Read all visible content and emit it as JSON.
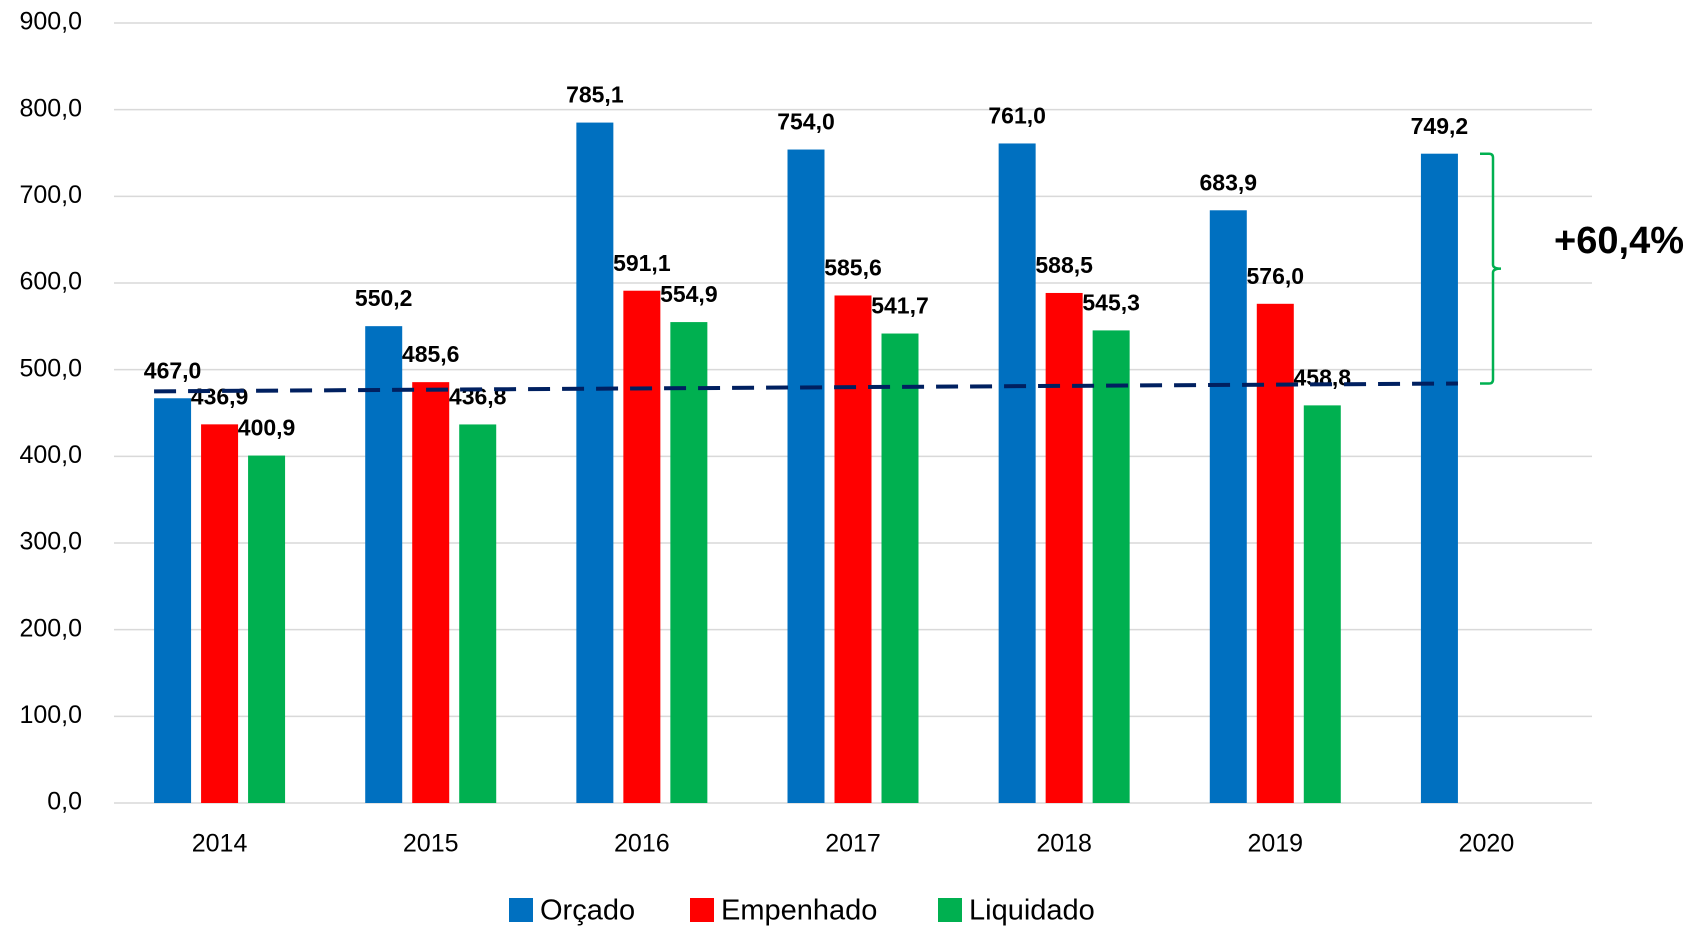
{
  "chart_data": {
    "type": "bar",
    "categories": [
      "2014",
      "2015",
      "2016",
      "2017",
      "2018",
      "2019",
      "2020"
    ],
    "series": [
      {
        "name": "Orçado",
        "color": "#0070c0",
        "values": [
          467.0,
          550.2,
          785.1,
          754.0,
          761.0,
          683.9,
          749.2
        ],
        "value_labels": [
          "467,0",
          "550,2",
          "785,1",
          "754,0",
          "761,0",
          "683,9",
          "749,2"
        ]
      },
      {
        "name": "Empenhado",
        "color": "#ff0000",
        "values": [
          436.9,
          485.6,
          591.1,
          585.6,
          588.5,
          576.0,
          null
        ],
        "value_labels": [
          "436,9",
          "485,6",
          "591,1",
          "585,6",
          "588,5",
          "576,0",
          null
        ]
      },
      {
        "name": "Liquidado",
        "color": "#00b050",
        "values": [
          400.9,
          436.8,
          554.9,
          541.7,
          545.3,
          458.8,
          null
        ],
        "value_labels": [
          "400,9",
          "436,8",
          "554,9",
          "541,7",
          "545,3",
          "458,8",
          null
        ]
      }
    ],
    "trendline": {
      "color": "#002060",
      "values": [
        475,
        484
      ]
    },
    "annotation": "+60,4%",
    "annotation_color": "#00b050",
    "ylim": [
      0,
      900
    ],
    "yticks": [
      {
        "value": 0,
        "label": "0,0"
      },
      {
        "value": 100,
        "label": "100,0"
      },
      {
        "value": 200,
        "label": "200,0"
      },
      {
        "value": 300,
        "label": "300,0"
      },
      {
        "value": 400,
        "label": "400,0"
      },
      {
        "value": 500,
        "label": "500,0"
      },
      {
        "value": 600,
        "label": "600,0"
      },
      {
        "value": 700,
        "label": "700,0"
      },
      {
        "value": 800,
        "label": "800,0"
      },
      {
        "value": 900,
        "label": "900,0"
      }
    ],
    "grid": true,
    "legend": "bottom"
  }
}
